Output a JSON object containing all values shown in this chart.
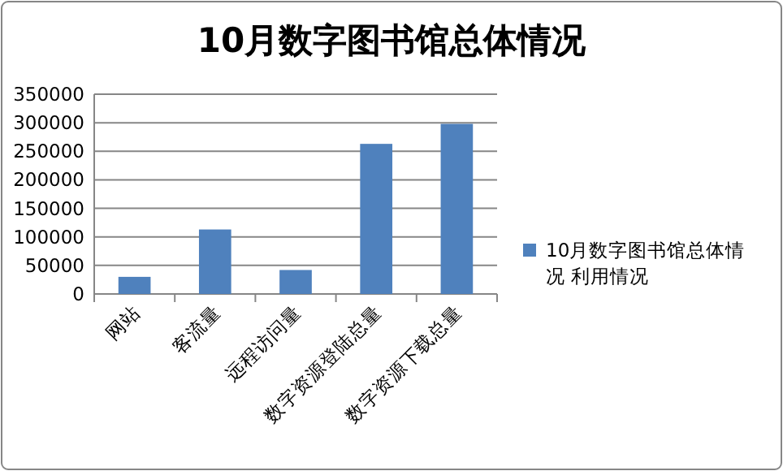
{
  "chart_data": {
    "type": "bar",
    "title": "10月数字图书馆总体情况",
    "categories": [
      "网站",
      "客流量",
      "远程访问量",
      "数字资源登陆总量",
      "数字资源下载总量"
    ],
    "series": [
      {
        "name": "10月数字图书馆总体情况 利用情况",
        "color": "#4f81bd",
        "values": [
          30000,
          113000,
          42000,
          263000,
          298000
        ]
      }
    ],
    "ylim": [
      0,
      350000
    ],
    "yticks": [
      0,
      50000,
      100000,
      150000,
      200000,
      250000,
      300000,
      350000
    ],
    "grid": "y",
    "legend": "right"
  }
}
